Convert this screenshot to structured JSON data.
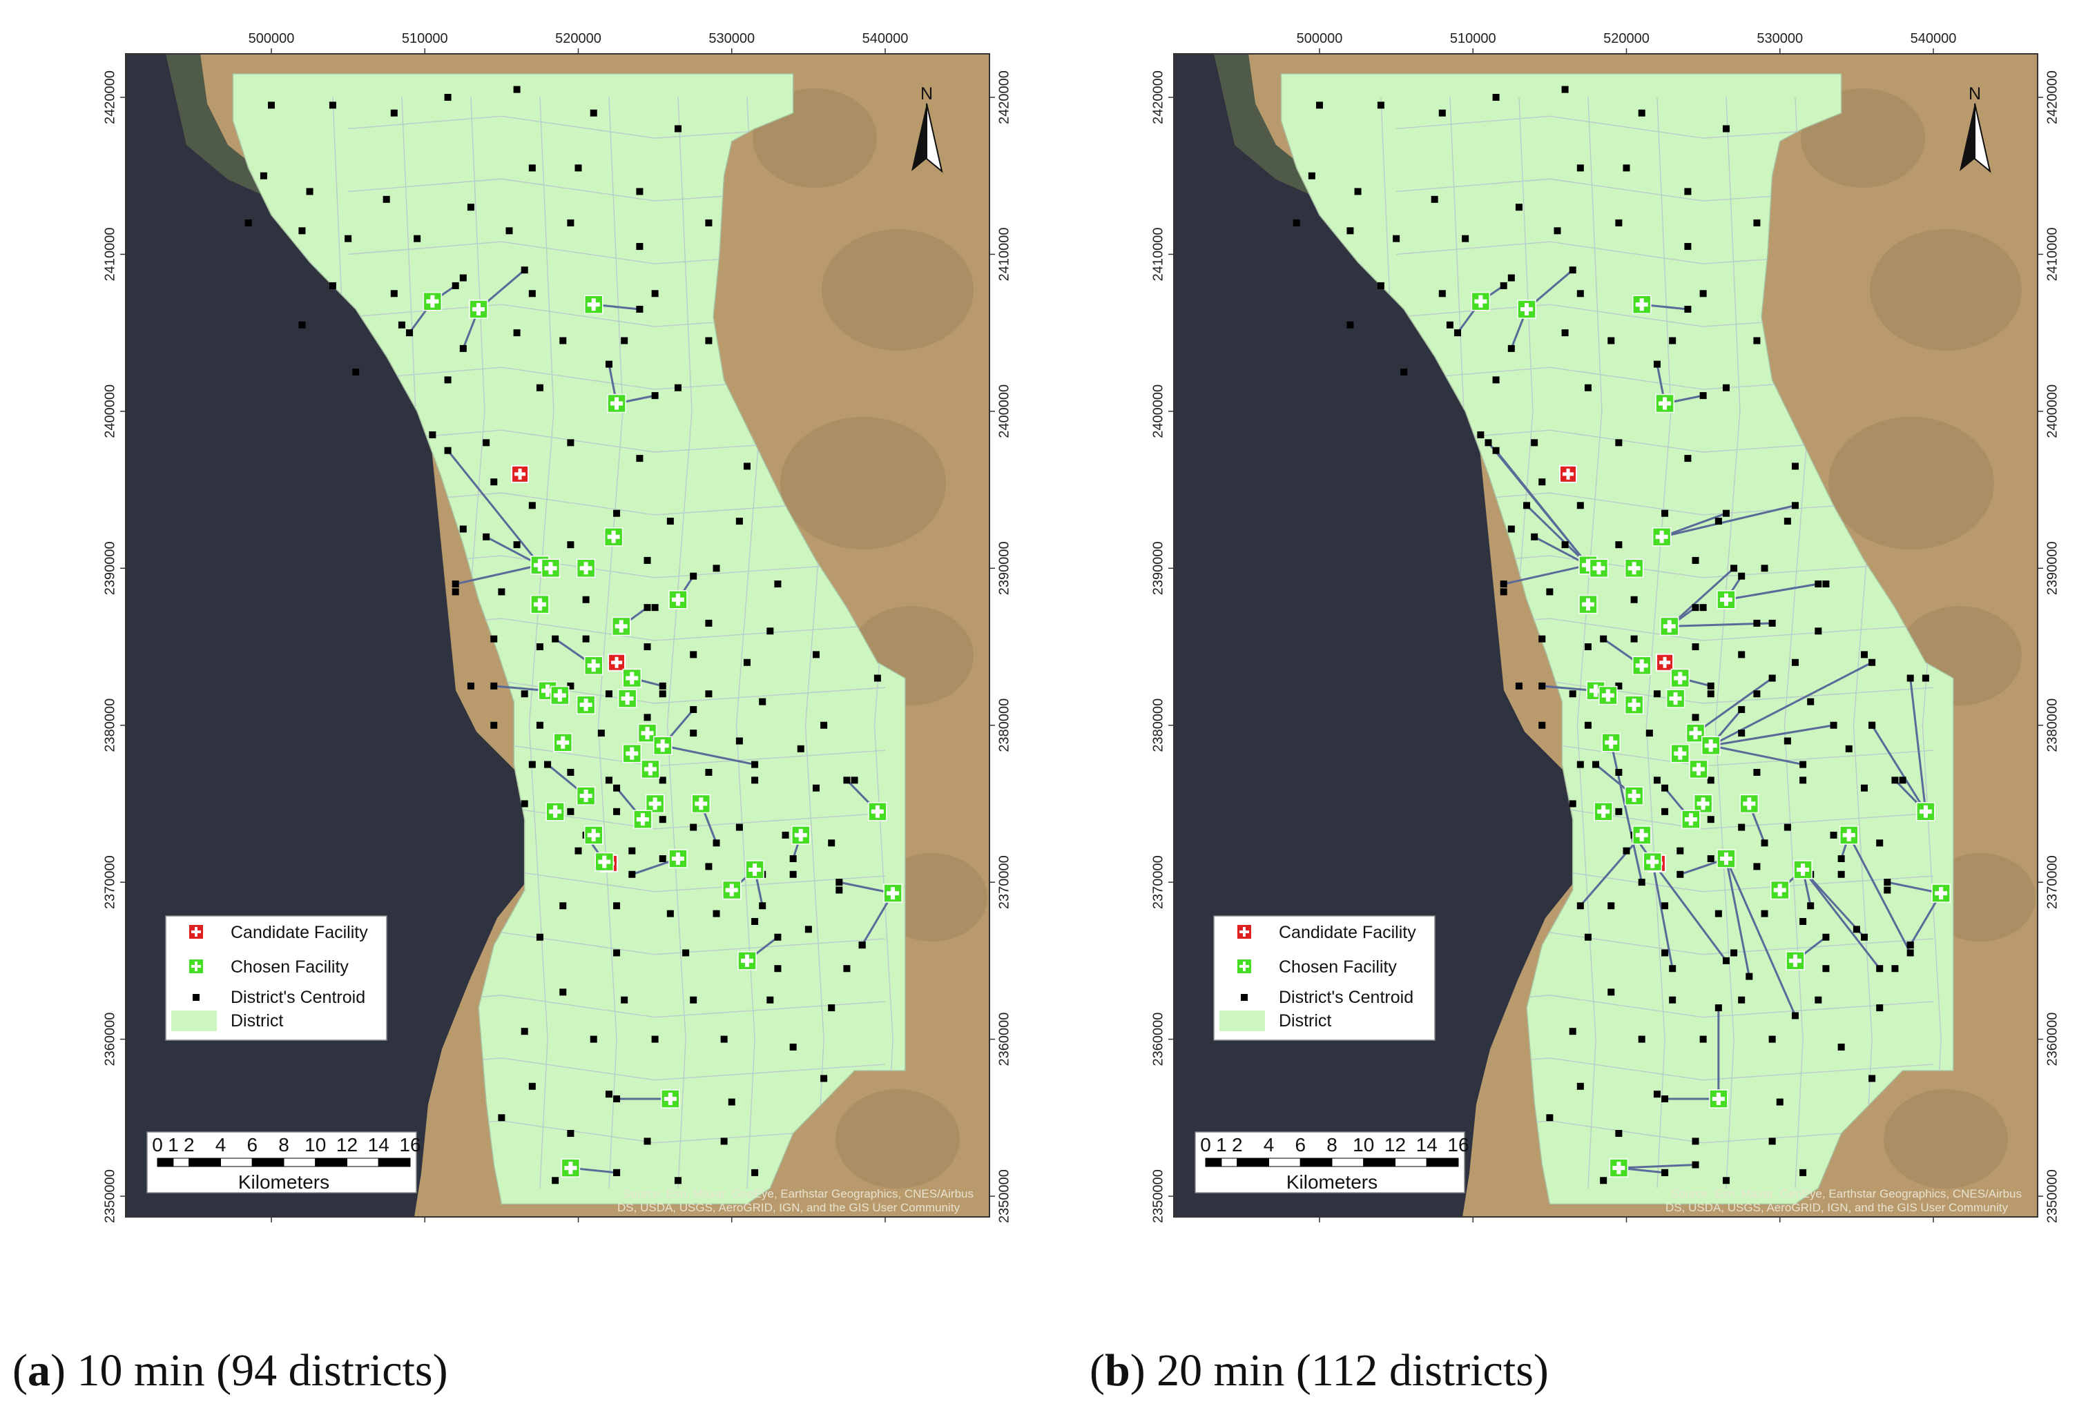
{
  "maps": [
    {
      "id": "a",
      "caption_letter": "a",
      "caption_text": ") 10 min (94 districts)",
      "caption_open": "("
    },
    {
      "id": "b",
      "caption_letter": "b",
      "caption_text": ") 20 min (112 districts)",
      "caption_open": "("
    }
  ],
  "x_ticks": [
    "500000",
    "510000",
    "520000",
    "530000",
    "540000"
  ],
  "y_ticks": [
    "2420000",
    "2410000",
    "2400000",
    "2390000",
    "2380000",
    "2370000",
    "2360000",
    "2350000"
  ],
  "north_label": "N",
  "legend": {
    "candidate": "Candidate Facility",
    "chosen": "Chosen Facility",
    "centroid": "District's Centroid",
    "district": "District"
  },
  "scale_bar": {
    "ticks": [
      "0",
      "1",
      "2",
      "4",
      "6",
      "8",
      "10",
      "12",
      "14",
      "16"
    ],
    "unit": "Kilometers"
  },
  "source": {
    "line1": "Source: Esri, Maxar, GeoEye, Earthstar Geographics, CNES/Airbus",
    "line2": "DS, USDA, USGS, AeroGRID, IGN, and the GIS User Community"
  },
  "colors": {
    "sea": "#2f3340",
    "desert": "#b89a6c",
    "district": "#ccf5c0",
    "boundary": "#b8c8cc",
    "candidate": "#e02020",
    "chosen": "#44dd22",
    "centroid": "#000000",
    "link": "#5a6a99"
  },
  "chart_data": {
    "type": "scatter",
    "crs_units": "m",
    "xlim": [
      490000,
      545000
    ],
    "ylim": [
      2348000,
      2424000
    ],
    "candidate_facilities": [
      [
        516200,
        2396000
      ],
      [
        522500,
        2384000
      ],
      [
        522000,
        2371200
      ]
    ],
    "chosen_facilities_a": [
      [
        510500,
        2407000
      ],
      [
        513500,
        2406500
      ],
      [
        521000,
        2406800
      ],
      [
        522500,
        2400500
      ],
      [
        517500,
        2390200
      ],
      [
        518200,
        2390000
      ],
      [
        520500,
        2390000
      ],
      [
        522300,
        2392000
      ],
      [
        517500,
        2387700
      ],
      [
        522800,
        2386300
      ],
      [
        526500,
        2388000
      ],
      [
        521000,
        2383800
      ],
      [
        523500,
        2383000
      ],
      [
        523200,
        2381700
      ],
      [
        518000,
        2382200
      ],
      [
        518800,
        2381900
      ],
      [
        520500,
        2381300
      ],
      [
        524500,
        2379500
      ],
      [
        523500,
        2378200
      ],
      [
        524700,
        2377200
      ],
      [
        525500,
        2378700
      ],
      [
        519000,
        2378900
      ],
      [
        520500,
        2375500
      ],
      [
        525000,
        2375000
      ],
      [
        524200,
        2374000
      ],
      [
        518500,
        2374500
      ],
      [
        521000,
        2373000
      ],
      [
        521700,
        2371300
      ],
      [
        526500,
        2371500
      ],
      [
        528000,
        2375000
      ],
      [
        530000,
        2369500
      ],
      [
        531500,
        2370800
      ],
      [
        534500,
        2373000
      ],
      [
        539500,
        2374500
      ],
      [
        540500,
        2369300
      ],
      [
        531000,
        2365000
      ],
      [
        526000,
        2356200
      ],
      [
        519500,
        2351800
      ]
    ]
  }
}
